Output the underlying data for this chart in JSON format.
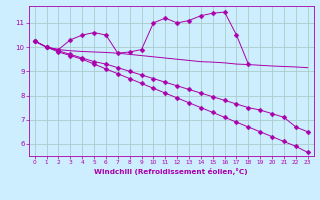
{
  "xlabel": "Windchill (Refroidissement éolien,°C)",
  "bg_color": "#cceeff",
  "grid_color": "#aacccc",
  "line_color": "#aa00aa",
  "xlim": [
    -0.5,
    23.5
  ],
  "ylim": [
    5.5,
    11.7
  ],
  "xticks": [
    0,
    1,
    2,
    3,
    4,
    5,
    6,
    7,
    8,
    9,
    10,
    11,
    12,
    13,
    14,
    15,
    16,
    17,
    18,
    19,
    20,
    21,
    22,
    23
  ],
  "yticks": [
    6,
    7,
    8,
    9,
    10,
    11
  ],
  "lines": [
    {
      "x": [
        0,
        1,
        2,
        3,
        4,
        5,
        6,
        7,
        8,
        9,
        10,
        11,
        12,
        13,
        14,
        15,
        16,
        17,
        18,
        19,
        20,
        21,
        22,
        23
      ],
      "y": [
        10.25,
        10.0,
        9.9,
        10.3,
        10.5,
        10.6,
        10.5,
        9.75,
        9.8,
        9.9,
        11.0,
        11.2,
        11.0,
        11.1,
        11.3,
        11.4,
        11.45,
        10.5,
        9.3,
        null,
        null,
        null,
        null,
        null
      ],
      "marker": "D",
      "markersize": 2.5,
      "has_nulls": true
    },
    {
      "x": [
        0,
        1,
        2,
        3,
        4,
        5,
        6,
        7,
        8,
        9,
        10,
        11,
        12,
        13,
        14,
        15,
        16,
        17,
        18,
        19,
        20,
        21,
        22,
        23
      ],
      "y": [
        10.25,
        10.0,
        9.9,
        9.85,
        9.82,
        9.8,
        9.78,
        9.75,
        9.7,
        9.65,
        9.6,
        9.55,
        9.5,
        9.45,
        9.4,
        9.38,
        9.35,
        9.3,
        9.28,
        9.25,
        9.22,
        9.2,
        9.18,
        9.15
      ],
      "marker": null,
      "markersize": 0,
      "has_nulls": false
    },
    {
      "x": [
        0,
        1,
        2,
        3,
        4,
        5,
        6,
        7,
        8,
        9,
        10,
        11,
        12,
        13,
        14,
        15,
        16,
        17,
        18,
        19,
        20,
        21,
        22,
        23
      ],
      "y": [
        10.25,
        10.0,
        9.85,
        9.7,
        9.55,
        9.4,
        9.3,
        9.15,
        9.0,
        8.85,
        8.7,
        8.55,
        8.4,
        8.25,
        8.1,
        7.95,
        7.8,
        7.65,
        7.5,
        7.4,
        7.25,
        7.1,
        6.7,
        6.5
      ],
      "marker": "D",
      "markersize": 2.5,
      "has_nulls": false
    },
    {
      "x": [
        0,
        1,
        2,
        3,
        4,
        5,
        6,
        7,
        8,
        9,
        10,
        11,
        12,
        13,
        14,
        15,
        16,
        17,
        18,
        19,
        20,
        21,
        22,
        23
      ],
      "y": [
        10.25,
        10.0,
        9.8,
        9.65,
        9.5,
        9.3,
        9.1,
        8.9,
        8.7,
        8.5,
        8.3,
        8.1,
        7.9,
        7.7,
        7.5,
        7.3,
        7.1,
        6.9,
        6.7,
        6.5,
        6.3,
        6.1,
        5.9,
        5.65
      ],
      "marker": "D",
      "markersize": 2.5,
      "has_nulls": false
    }
  ]
}
